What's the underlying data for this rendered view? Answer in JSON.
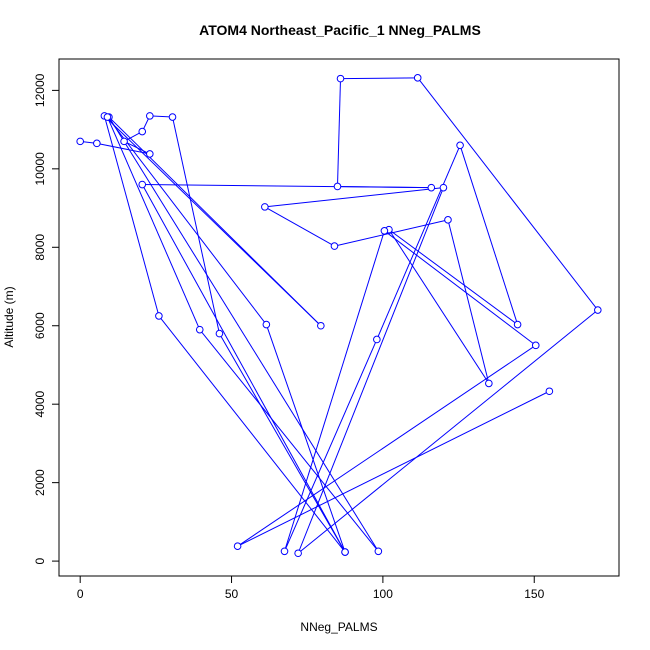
{
  "chart_data": {
    "type": "line",
    "title": "ATOM4 Northeast_Pacific_1 NNeg_PALMS",
    "xlabel": "NNeg_PALMS",
    "ylabel": "Altitude (m)",
    "xlim": [
      -7,
      178
    ],
    "ylim": [
      -380,
      12800
    ],
    "xticks": [
      0,
      50,
      100,
      150
    ],
    "yticks": [
      0,
      2000,
      4000,
      6000,
      8000,
      10000,
      12000
    ],
    "grid": false,
    "color": "#0000ff",
    "marker": "open-circle",
    "series": [
      {
        "points": [
          [
            0,
            10700
          ],
          [
            5.5,
            10650
          ],
          [
            23,
            10380
          ],
          [
            14.5,
            10700
          ],
          [
            20.5,
            10950
          ],
          [
            23,
            11350
          ],
          [
            30.5,
            11320
          ],
          [
            46,
            5800
          ],
          [
            87.5,
            230
          ],
          [
            26,
            6250
          ],
          [
            8,
            11350
          ],
          [
            79.5,
            6000
          ],
          [
            9.5,
            11320
          ],
          [
            98.5,
            250
          ],
          [
            39.5,
            5900
          ],
          [
            9,
            11320
          ],
          [
            61.5,
            6030
          ],
          [
            87.5,
            230
          ],
          [
            20.5,
            9600
          ],
          [
            116,
            9520
          ],
          [
            85,
            9550
          ],
          [
            86,
            12300
          ],
          [
            111.5,
            12320
          ],
          [
            171,
            6400
          ],
          [
            72,
            200
          ],
          [
            120,
            9520
          ],
          [
            61,
            9030
          ],
          [
            84,
            8030
          ],
          [
            121.5,
            8700
          ],
          [
            135,
            4530
          ],
          [
            102,
            8450
          ],
          [
            144.5,
            6030
          ],
          [
            125.5,
            10600
          ],
          [
            98,
            5650
          ],
          [
            67.5,
            250
          ],
          [
            100.5,
            8420
          ],
          [
            150.5,
            5500
          ],
          [
            52,
            380
          ],
          [
            155,
            4330
          ]
        ]
      }
    ]
  }
}
